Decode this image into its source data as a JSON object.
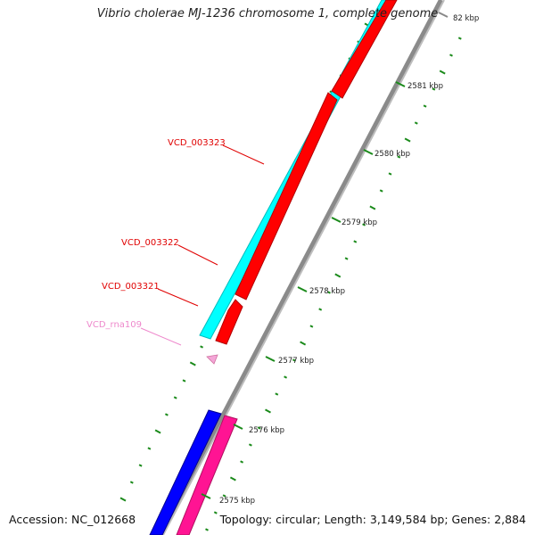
{
  "map": {
    "title": "Vibrio cholerae MJ-1236 chromosome 1, complete genome",
    "accession": "Accession: NC_012668",
    "summary": "Topology: circular; Length: 3,149,584 bp; Genes: 2,884"
  },
  "colors": {
    "background": "#ffffff",
    "backbone": "#8a8a8a",
    "forward_cds": "#00ffff",
    "reverse_cds": "#ff0000",
    "forward_gene_ref": "#0000ff",
    "reverse_gene_ref": "#ff1493",
    "rna": "#f4a6d7",
    "label_cds": "#e00000",
    "label_rna": "#ee88cc",
    "gc_ticks": "#1a8a1a"
  },
  "ruler": [
    {
      "label": "82 kbp"
    },
    {
      "label": "2581 kbp"
    },
    {
      "label": "2580 kbp"
    },
    {
      "label": "2579 kbp"
    },
    {
      "label": "2578 kbp"
    },
    {
      "label": "2577 kbp"
    },
    {
      "label": "2576 kbp"
    },
    {
      "label": "2575 kbp"
    }
  ],
  "features": [
    {
      "name": "VCD_003323",
      "kind": "cds",
      "icon": "gene-label"
    },
    {
      "name": "VCD_003322",
      "kind": "cds",
      "icon": "gene-label"
    },
    {
      "name": "VCD_003321",
      "kind": "cds",
      "icon": "gene-label"
    },
    {
      "name": "VCD_rna109",
      "kind": "rna",
      "icon": "rna-label"
    }
  ]
}
